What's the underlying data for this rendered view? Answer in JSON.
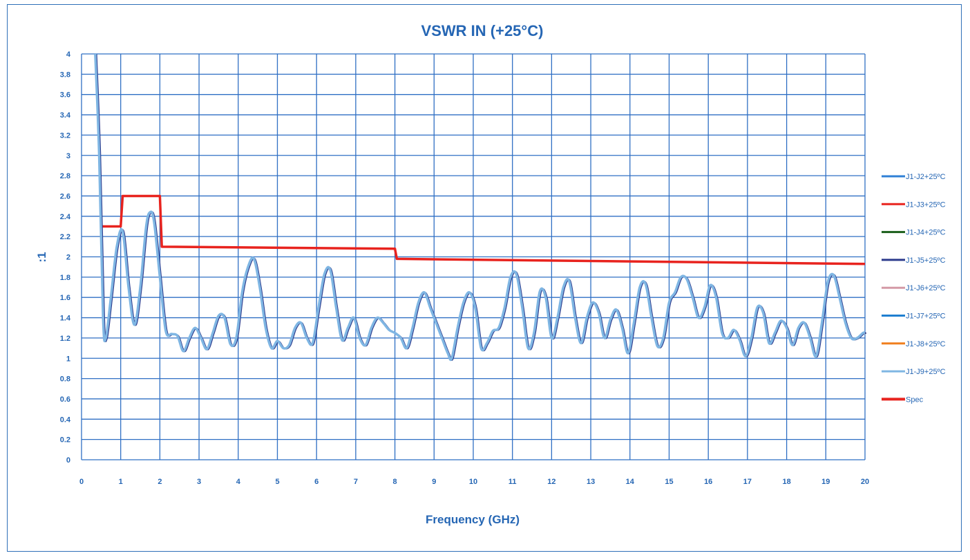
{
  "chart_data": {
    "type": "line",
    "title": "VSWR IN (+25°C)",
    "xlabel": "Frequency (GHz)",
    "ylabel": ":1",
    "xlim": [
      0,
      20
    ],
    "ylim": [
      0,
      4
    ],
    "x_ticks": [
      "0",
      "1",
      "2",
      "3",
      "4",
      "5",
      "6",
      "7",
      "8",
      "9",
      "10",
      "11",
      "12",
      "13",
      "14",
      "15",
      "16",
      "17",
      "18",
      "19",
      "20"
    ],
    "y_ticks": [
      "0",
      "0.2",
      "0.4",
      "0.6",
      "0.8",
      "1",
      "1.2",
      "1.4",
      "1.6",
      "1.8",
      "2",
      "2.2",
      "2.4",
      "2.6",
      "2.8",
      "3",
      "3.2",
      "3.4",
      "3.6",
      "3.8",
      "4"
    ],
    "grid": true,
    "legend_position": "right",
    "colors": {
      "grid": "#2f6fc4",
      "text": "#2566b4",
      "spec": "#e8231e",
      "measured": "#7fb6e3"
    },
    "series": [
      {
        "name": "J1-J2+25ºC",
        "color": "#2f80d6"
      },
      {
        "name": "J1-J3+25ºC",
        "color": "#e8231e"
      },
      {
        "name": "J1-J4+25ºC",
        "color": "#1a5e1a"
      },
      {
        "name": "J1-J5+25ºC",
        "color": "#2b3a8c"
      },
      {
        "name": "J1-J6+25ºC",
        "color": "#d49aa6"
      },
      {
        "name": "J1-J7+25ºC",
        "color": "#1f7fd0"
      },
      {
        "name": "J1-J8+25ºC",
        "color": "#f07f1e"
      },
      {
        "name": "J1-J9+25ºC",
        "color": "#7fb6e3"
      },
      {
        "name": "Spec",
        "color": "#e8231e"
      }
    ],
    "spec": {
      "x": [
        0.5,
        1.0,
        1.05,
        2.0,
        2.05,
        8.0,
        8.05,
        20.0
      ],
      "y": [
        2.3,
        2.3,
        2.6,
        2.6,
        2.1,
        2.08,
        1.98,
        1.93
      ]
    },
    "measured": {
      "x": [
        0.35,
        0.45,
        0.55,
        0.62,
        0.75,
        0.9,
        1.05,
        1.2,
        1.35,
        1.5,
        1.65,
        1.75,
        1.85,
        2.0,
        2.15,
        2.3,
        2.45,
        2.6,
        2.75,
        2.9,
        3.05,
        3.2,
        3.35,
        3.5,
        3.65,
        3.8,
        3.95,
        4.1,
        4.25,
        4.4,
        4.55,
        4.7,
        4.85,
        5.0,
        5.15,
        5.3,
        5.45,
        5.6,
        5.75,
        5.9,
        6.05,
        6.2,
        6.35,
        6.5,
        6.65,
        6.8,
        6.95,
        7.1,
        7.25,
        7.4,
        7.55,
        7.7,
        7.85,
        8.0,
        8.15,
        8.3,
        8.45,
        8.6,
        8.75,
        8.9,
        9.05,
        9.2,
        9.35,
        9.45,
        9.6,
        9.75,
        9.9,
        10.05,
        10.2,
        10.35,
        10.5,
        10.65,
        10.8,
        10.95,
        11.1,
        11.25,
        11.4,
        11.55,
        11.7,
        11.85,
        12.0,
        12.15,
        12.3,
        12.45,
        12.6,
        12.75,
        12.9,
        13.05,
        13.2,
        13.35,
        13.5,
        13.65,
        13.8,
        13.95,
        14.1,
        14.25,
        14.4,
        14.55,
        14.7,
        14.85,
        15.0,
        15.15,
        15.3,
        15.45,
        15.6,
        15.75,
        15.9,
        16.05,
        16.2,
        16.35,
        16.5,
        16.65,
        16.8,
        16.95,
        17.1,
        17.25,
        17.4,
        17.55,
        17.7,
        17.85,
        18.0,
        18.15,
        18.3,
        18.45,
        18.6,
        18.75,
        18.9,
        19.05,
        19.2,
        19.35,
        19.5,
        19.65,
        19.8,
        19.95,
        20.0
      ],
      "y": [
        4.0,
        3.0,
        1.4,
        1.2,
        1.6,
        2.1,
        2.25,
        1.7,
        1.33,
        1.7,
        2.3,
        2.44,
        2.35,
        1.8,
        1.27,
        1.24,
        1.22,
        1.07,
        1.2,
        1.3,
        1.2,
        1.09,
        1.25,
        1.42,
        1.4,
        1.14,
        1.2,
        1.65,
        1.9,
        1.98,
        1.7,
        1.3,
        1.1,
        1.17,
        1.1,
        1.13,
        1.3,
        1.35,
        1.2,
        1.15,
        1.5,
        1.83,
        1.87,
        1.5,
        1.18,
        1.3,
        1.4,
        1.2,
        1.13,
        1.3,
        1.4,
        1.35,
        1.28,
        1.25,
        1.2,
        1.1,
        1.3,
        1.55,
        1.65,
        1.5,
        1.35,
        1.2,
        1.05,
        1.0,
        1.3,
        1.55,
        1.65,
        1.5,
        1.1,
        1.15,
        1.27,
        1.3,
        1.5,
        1.8,
        1.83,
        1.5,
        1.1,
        1.25,
        1.66,
        1.6,
        1.2,
        1.4,
        1.7,
        1.76,
        1.4,
        1.15,
        1.4,
        1.55,
        1.45,
        1.2,
        1.38,
        1.48,
        1.3,
        1.05,
        1.35,
        1.7,
        1.73,
        1.4,
        1.12,
        1.2,
        1.55,
        1.65,
        1.8,
        1.78,
        1.6,
        1.4,
        1.5,
        1.72,
        1.6,
        1.25,
        1.2,
        1.28,
        1.18,
        1.02,
        1.2,
        1.5,
        1.45,
        1.15,
        1.25,
        1.37,
        1.3,
        1.13,
        1.3,
        1.35,
        1.2,
        1.02,
        1.35,
        1.75,
        1.82,
        1.6,
        1.35,
        1.2,
        1.2,
        1.25,
        1.25
      ]
    },
    "legend_title": ""
  }
}
